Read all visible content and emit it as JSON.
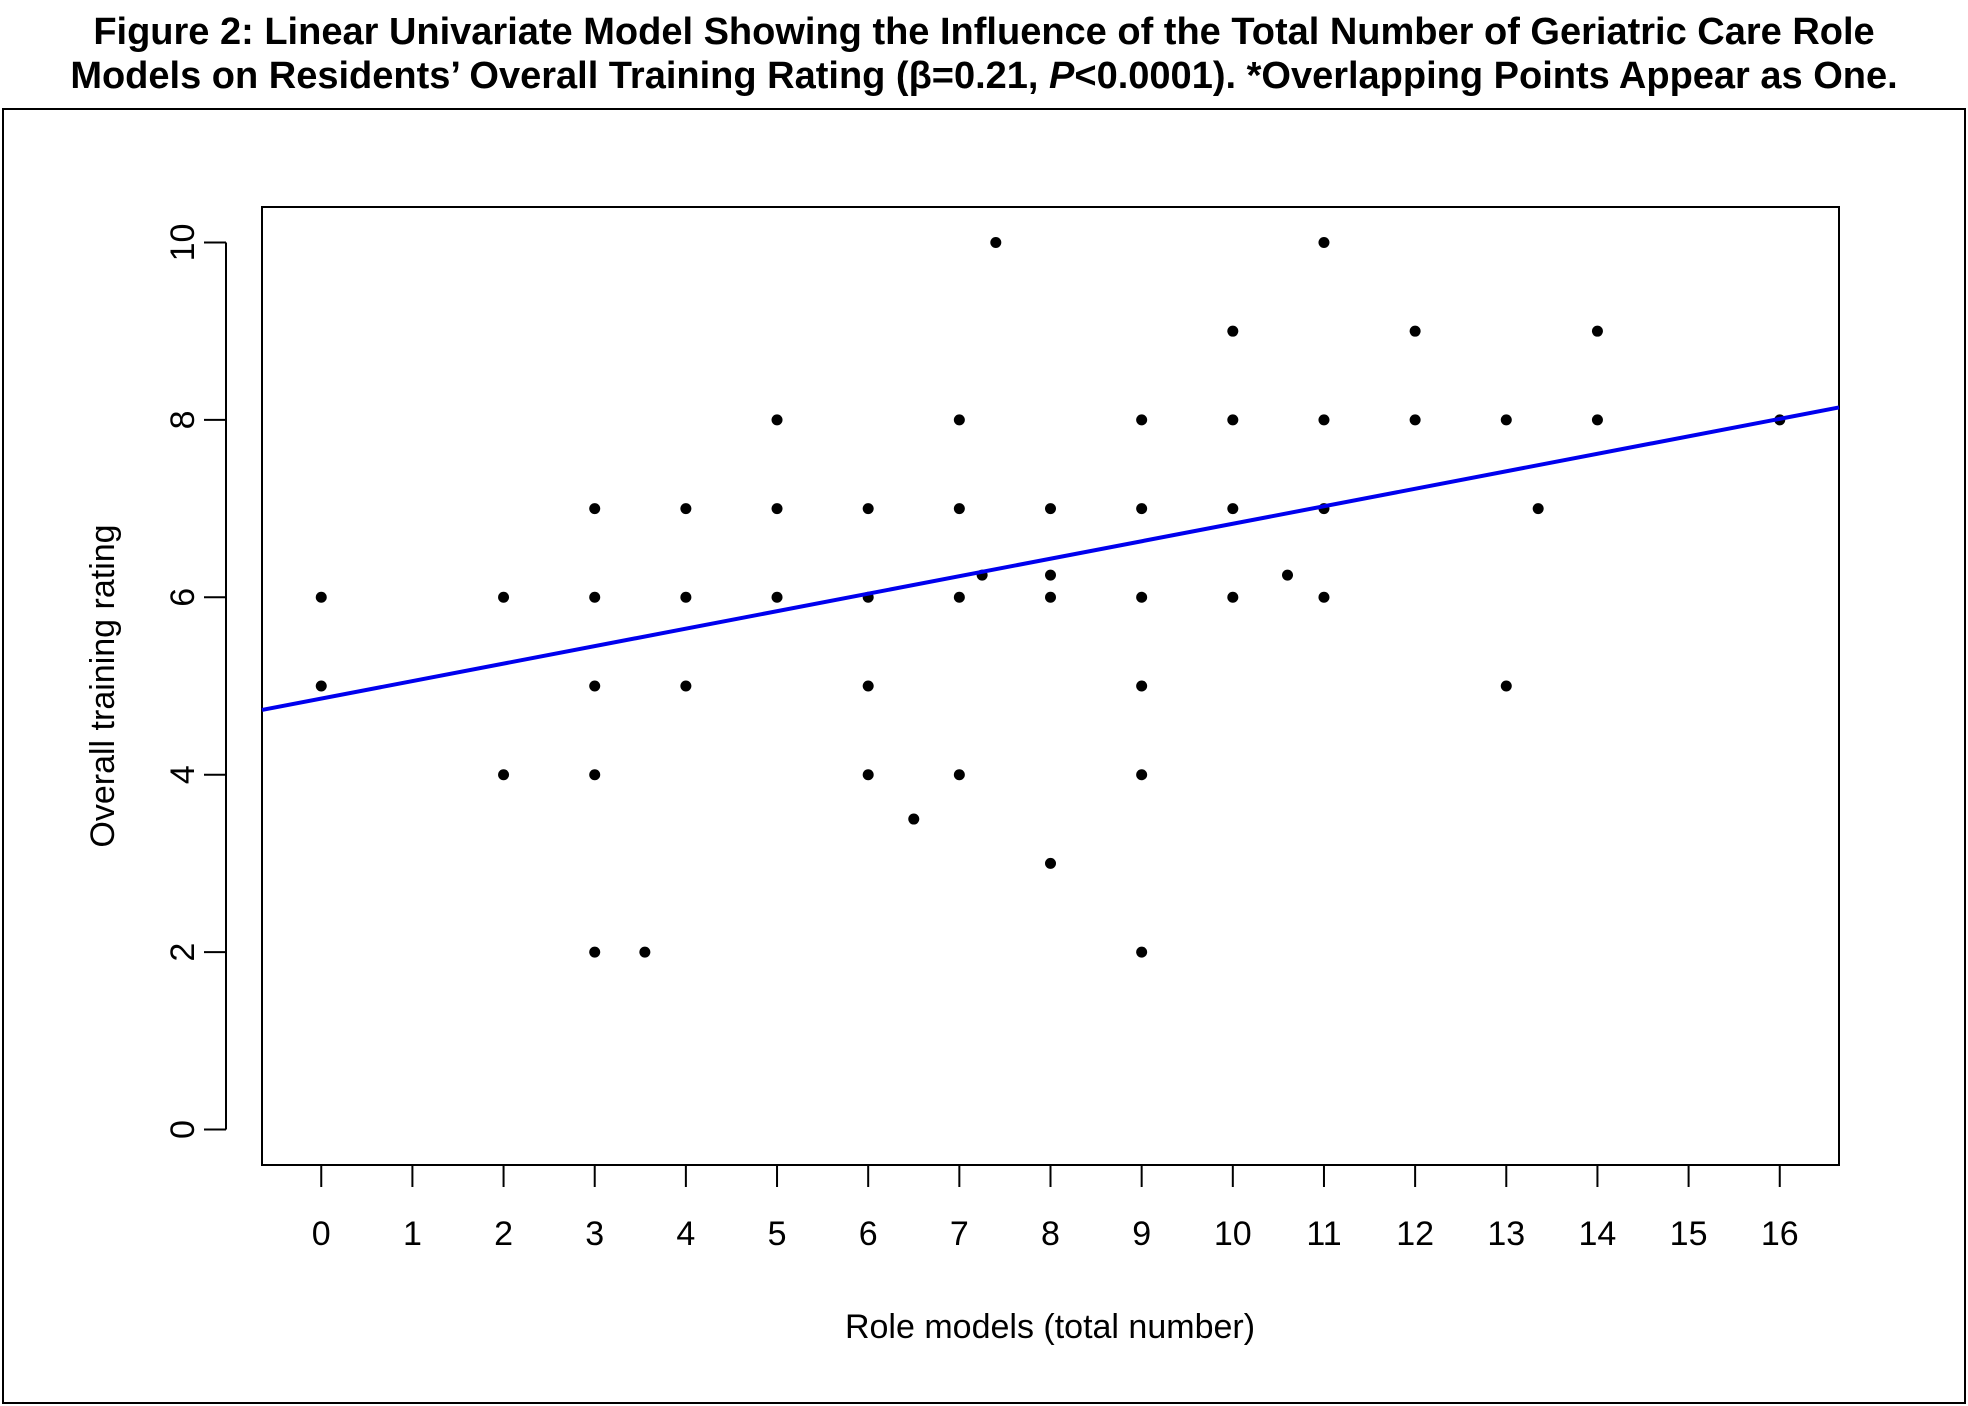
{
  "figure": {
    "title_line1": "Figure 2: Linear Univariate Model Showing the Influence of the Total Number of Geriatric Care Role",
    "title_line2_a": "Models on Residents’ Overall Training Rating (β=0.21, ",
    "title_line2_p": "P",
    "title_line2_b": "<0.0001). *Overlapping Points Appear as One."
  },
  "chart_data": {
    "type": "scatter",
    "xlabel": "Role models (total number)",
    "ylabel": "Overall training rating",
    "xlim": [
      -0.65,
      16.65
    ],
    "ylim": [
      -0.4,
      10.4
    ],
    "x_ticks": [
      0,
      1,
      2,
      3,
      4,
      5,
      6,
      7,
      8,
      9,
      10,
      11,
      12,
      13,
      14,
      15,
      16
    ],
    "y_ticks": [
      0,
      2,
      4,
      6,
      8,
      10
    ],
    "grid": false,
    "point_color": "#000000",
    "line_color": "#0000ee",
    "regression_line": {
      "x": [
        -0.65,
        16.65
      ],
      "y": [
        4.73,
        8.14
      ]
    },
    "points": [
      [
        0,
        6
      ],
      [
        0,
        5
      ],
      [
        2,
        6
      ],
      [
        2,
        4
      ],
      [
        3,
        7
      ],
      [
        3,
        6
      ],
      [
        3,
        5
      ],
      [
        3,
        4
      ],
      [
        3,
        2
      ],
      [
        3.55,
        2
      ],
      [
        4,
        7
      ],
      [
        4,
        6
      ],
      [
        4,
        5
      ],
      [
        5,
        8
      ],
      [
        5,
        7
      ],
      [
        5,
        6
      ],
      [
        6,
        7
      ],
      [
        6,
        6
      ],
      [
        6,
        5
      ],
      [
        6,
        4
      ],
      [
        6.5,
        3.5
      ],
      [
        7,
        8
      ],
      [
        7,
        7
      ],
      [
        7,
        6
      ],
      [
        7,
        4
      ],
      [
        7.25,
        6.25
      ],
      [
        7.4,
        10
      ],
      [
        8,
        7
      ],
      [
        8,
        6.25
      ],
      [
        8,
        6
      ],
      [
        8,
        3
      ],
      [
        9,
        8
      ],
      [
        9,
        7
      ],
      [
        9,
        6
      ],
      [
        9,
        5
      ],
      [
        9,
        4
      ],
      [
        9,
        2
      ],
      [
        10,
        9
      ],
      [
        10,
        8
      ],
      [
        10,
        7
      ],
      [
        10,
        6
      ],
      [
        10.6,
        6.25
      ],
      [
        11,
        10
      ],
      [
        11,
        8
      ],
      [
        11,
        7
      ],
      [
        11,
        6
      ],
      [
        12,
        9
      ],
      [
        12,
        8
      ],
      [
        13,
        8
      ],
      [
        13,
        5
      ],
      [
        13.35,
        7
      ],
      [
        14,
        9
      ],
      [
        14,
        8
      ],
      [
        16,
        8
      ]
    ]
  }
}
